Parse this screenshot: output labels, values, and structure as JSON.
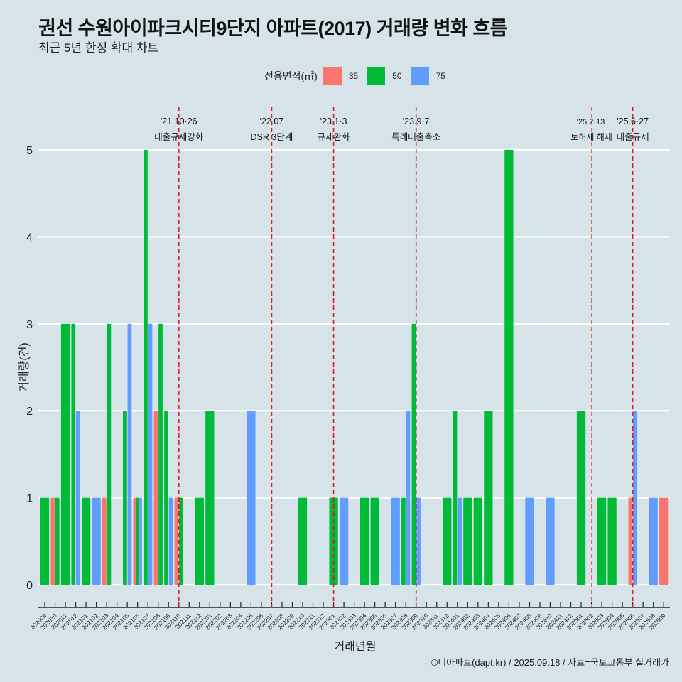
{
  "title": "권선 수원아이파크시티9단지 아파트(2017) 거래량 변화 흐름",
  "subtitle": "최근 5년 한정 확대 차트",
  "caption": "©디아파트(dapt.kr) / 2025.09.18 / 자료=국토교통부 실거래가",
  "legend": {
    "title": "전용면적(㎡)",
    "items": [
      {
        "label": "35",
        "color": "#f8766d"
      },
      {
        "label": "50",
        "color": "#00ba38"
      },
      {
        "label": "75",
        "color": "#619cff"
      }
    ]
  },
  "chart_data": {
    "type": "bar",
    "title": "권선 수원아이파크시티9단지 아파트(2017) 거래량 변화 흐름",
    "xlabel": "거래년월",
    "ylabel": "거래량(건)",
    "ylim": [
      0,
      5
    ],
    "yticks": [
      "0",
      "1",
      "2",
      "3",
      "4",
      "5"
    ],
    "grid": true,
    "legend_position": "top",
    "categories": [
      "202009",
      "202010",
      "202011",
      "202012",
      "202101",
      "202102",
      "202103",
      "202104",
      "202105",
      "202106",
      "202107",
      "202108",
      "202109",
      "202110",
      "202111",
      "202112",
      "202201",
      "202202",
      "202203",
      "202204",
      "202205",
      "202206",
      "202207",
      "202208",
      "202209",
      "202210",
      "202211",
      "202212",
      "202301",
      "202302",
      "202303",
      "202304",
      "202305",
      "202306",
      "202307",
      "202308",
      "202309",
      "202310",
      "202311",
      "202312",
      "202401",
      "202402",
      "202403",
      "202404",
      "202405",
      "202406",
      "202407",
      "202408",
      "202409",
      "202410",
      "202411",
      "202412",
      "202501",
      "202502",
      "202503",
      "202504",
      "202505",
      "202506",
      "202507",
      "202508",
      "202509"
    ],
    "series": [
      {
        "name": "35",
        "color": "#f8766d",
        "values": [
          0,
          1,
          0,
          0,
          0,
          0,
          1,
          0,
          0,
          1,
          0,
          2,
          0,
          1,
          0,
          0,
          0,
          0,
          0,
          0,
          0,
          0,
          0,
          0,
          0,
          0,
          0,
          0,
          0,
          0,
          0,
          0,
          0,
          0,
          0,
          0,
          0,
          0,
          0,
          0,
          0,
          0,
          0,
          0,
          0,
          0,
          0,
          0,
          0,
          0,
          0,
          0,
          0,
          0,
          0,
          0,
          0,
          1,
          0,
          0,
          1
        ]
      },
      {
        "name": "50",
        "color": "#00ba38",
        "values": [
          1,
          1,
          3,
          3,
          1,
          0,
          3,
          0,
          2,
          1,
          5,
          3,
          2,
          1,
          0,
          1,
          2,
          0,
          0,
          0,
          0,
          0,
          0,
          0,
          0,
          1,
          0,
          0,
          1,
          0,
          0,
          1,
          1,
          0,
          0,
          1,
          3,
          0,
          0,
          1,
          2,
          1,
          1,
          2,
          0,
          5,
          0,
          0,
          0,
          0,
          0,
          0,
          2,
          0,
          1,
          1,
          0,
          0,
          0,
          0,
          0
        ]
      },
      {
        "name": "75",
        "color": "#619cff",
        "values": [
          0,
          0,
          0,
          2,
          0,
          1,
          0,
          0,
          3,
          1,
          3,
          0,
          1,
          0,
          0,
          0,
          0,
          0,
          0,
          0,
          2,
          0,
          0,
          0,
          0,
          0,
          0,
          0,
          0,
          1,
          0,
          0,
          0,
          0,
          1,
          2,
          1,
          0,
          0,
          0,
          1,
          0,
          0,
          0,
          0,
          0,
          0,
          1,
          0,
          1,
          0,
          0,
          0,
          0,
          0,
          0,
          0,
          2,
          0,
          1,
          0
        ]
      }
    ],
    "annotations": [
      {
        "month": "202110",
        "date": "'21.10·26",
        "label": "대출규제강화",
        "style": "strong"
      },
      {
        "month": "202207",
        "date": "'22.07",
        "label": "DSR 3단계",
        "style": "strong"
      },
      {
        "month": "202301",
        "date": "'23.1·3",
        "label": "규제완화",
        "style": "strong"
      },
      {
        "month": "202309",
        "date": "'23.9·7",
        "label": "특례대출축소",
        "style": "strong"
      },
      {
        "month": "202502",
        "date": "'25.2·13",
        "label": "토허제 해제",
        "style": "light"
      },
      {
        "month": "202506",
        "date": "'25.6·27",
        "label": "대출규제",
        "style": "strong"
      }
    ]
  }
}
